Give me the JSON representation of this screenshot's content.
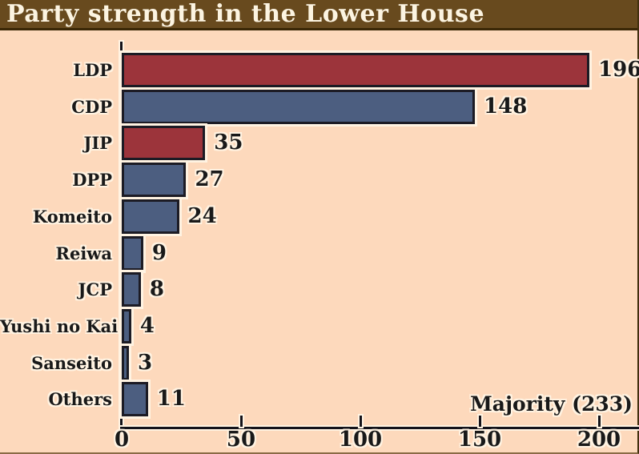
{
  "header": {
    "title": "Party strength in the Lower House"
  },
  "chart_data": {
    "type": "bar",
    "orientation": "horizontal",
    "title": "Party strength in the Lower House",
    "categories": [
      "LDP",
      "CDP",
      "JIP",
      "DPP",
      "Komeito",
      "Reiwa",
      "JCP",
      "Yushi no Kai",
      "Sanseito",
      "Others"
    ],
    "values": [
      196,
      148,
      35,
      27,
      24,
      9,
      8,
      4,
      3,
      11
    ],
    "bar_color_names": [
      "red",
      "blue",
      "red",
      "blue",
      "blue",
      "blue",
      "blue",
      "blue",
      "blue",
      "blue"
    ],
    "xticks": [
      0,
      50,
      100,
      150,
      200
    ],
    "xlim": [
      0,
      215
    ],
    "xlabel": "",
    "ylabel": "",
    "grid": false,
    "legend": false,
    "annotation": "Majority (233)",
    "majority_value": 233
  },
  "colors": {
    "red": "#9c343b",
    "blue": "#4c5e80",
    "background": "#fdd9bc",
    "title_bar": "#684a1e",
    "title_text": "#fcf4e1",
    "bar_border": "#1c1b24",
    "text": "#191919",
    "halo": "#fff3e2"
  }
}
